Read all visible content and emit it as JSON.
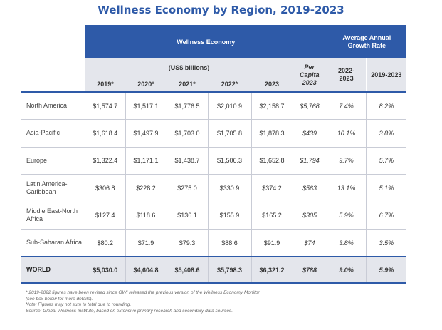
{
  "chart_data": {
    "type": "table",
    "title": "Wellness Economy by Region, 2019-2023",
    "group_headers": {
      "wellness_economy": "Wellness Economy",
      "avg_growth": "Average Annual Growth Rate",
      "usd_billions": "(US$ billions)",
      "per_capita": "Per Capita 2023"
    },
    "columns": [
      "2019*",
      "2020*",
      "2021*",
      "2022*",
      "2023",
      "Per Capita 2023",
      "2022-2023",
      "2019-2023"
    ],
    "rows": [
      {
        "region": "North America",
        "values": [
          "$1,574.7",
          "$1,517.1",
          "$1,776.5",
          "$2,010.9",
          "$2,158.7",
          "$5,768",
          "7.4%",
          "8.2%"
        ]
      },
      {
        "region": "Asia-Pacific",
        "values": [
          "$1,618.4",
          "$1,497.9",
          "$1,703.0",
          "$1,705.8",
          "$1,878.3",
          "$439",
          "10.1%",
          "3.8%"
        ]
      },
      {
        "region": "Europe",
        "values": [
          "$1,322.4",
          "$1,171.1",
          "$1,438.7",
          "$1,506.3",
          "$1,652.8",
          "$1,794",
          "9.7%",
          "5.7%"
        ]
      },
      {
        "region": "Latin America-Caribbean",
        "values": [
          "$306.8",
          "$228.2",
          "$275.0",
          "$330.9",
          "$374.2",
          "$563",
          "13.1%",
          "5.1%"
        ]
      },
      {
        "region": "Middle East-North Africa",
        "values": [
          "$127.4",
          "$118.6",
          "$136.1",
          "$155.9",
          "$165.2",
          "$305",
          "5.9%",
          "6.7%"
        ]
      },
      {
        "region": "Sub-Saharan Africa",
        "values": [
          "$80.2",
          "$71.9",
          "$79.3",
          "$88.6",
          "$91.9",
          "$74",
          "3.8%",
          "3.5%"
        ]
      }
    ],
    "total": {
      "region": "WORLD",
      "values": [
        "$5,030.0",
        "$4,604.8",
        "$5,408.6",
        "$5,798.3",
        "$6,321.2",
        "$788",
        "9.0%",
        "5.9%"
      ]
    },
    "notes": [
      "* 2019-2022 figures have been revised since GWI released the previous version of the Wellness Economy Monitor",
      "(see box below for more details).",
      "Note: Figures may not sum to total due to rounding.",
      "Source: Global Wellness Institute, based on extensive primary research and secondary data sources."
    ]
  },
  "colors": {
    "accent": "#2e5aa8",
    "header_gray": "#e4e6ec"
  }
}
